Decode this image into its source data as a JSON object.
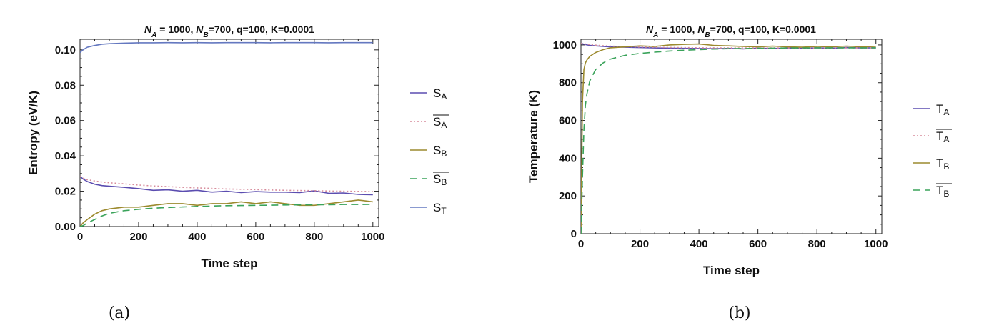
{
  "chart_data": [
    {
      "type": "line",
      "panel_caption": "(a)",
      "title": "N_A = 1000, N_B=700, q=100, K=0.0001",
      "title_parts": [
        "N",
        "A",
        " = 1000, ",
        "N",
        "B",
        "=700, q=100, K=0.0001"
      ],
      "xlabel": "Time step",
      "ylabel": "Entropy (eV/K)",
      "xlim": [
        0,
        1020
      ],
      "ylim": [
        0,
        0.106
      ],
      "xticks": [
        0,
        200,
        400,
        600,
        800,
        1000
      ],
      "yticks": [
        "0.00",
        "0.02",
        "0.04",
        "0.06",
        "0.08",
        "0.10"
      ],
      "ytick_values": [
        0,
        0.02,
        0.04,
        0.06,
        0.08,
        0.1
      ],
      "x": [
        0,
        10,
        25,
        50,
        75,
        100,
        150,
        200,
        250,
        300,
        350,
        400,
        450,
        500,
        550,
        600,
        650,
        700,
        750,
        800,
        850,
        900,
        950,
        1000
      ],
      "series": [
        {
          "name": "S_A",
          "label_main": "S",
          "label_sub": "A",
          "overline": false,
          "color": "#5b4db0",
          "dash": "",
          "values": [
            0.0285,
            0.027,
            0.0255,
            0.024,
            0.0232,
            0.0228,
            0.0222,
            0.0215,
            0.0205,
            0.0208,
            0.02,
            0.0205,
            0.0195,
            0.02,
            0.0192,
            0.0198,
            0.0195,
            0.0195,
            0.0192,
            0.0202,
            0.0188,
            0.019,
            0.0182,
            0.018
          ]
        },
        {
          "name": "S_A (mean)",
          "label_main": "S",
          "label_sub": "A",
          "overline": true,
          "color": "#d78c9c",
          "dash": "2,3",
          "values": [
            0.0285,
            0.0275,
            0.0265,
            0.0258,
            0.0252,
            0.0248,
            0.0242,
            0.0235,
            0.023,
            0.0226,
            0.0222,
            0.0219,
            0.0216,
            0.0213,
            0.0211,
            0.0209,
            0.0207,
            0.0205,
            0.0204,
            0.0203,
            0.0201,
            0.02,
            0.0199,
            0.0198
          ]
        },
        {
          "name": "S_B",
          "label_main": "S",
          "label_sub": "B",
          "overline": false,
          "color": "#9c8a2e",
          "dash": "",
          "values": [
            0.0,
            0.002,
            0.004,
            0.007,
            0.009,
            0.01,
            0.011,
            0.011,
            0.012,
            0.013,
            0.013,
            0.012,
            0.013,
            0.013,
            0.014,
            0.013,
            0.014,
            0.013,
            0.012,
            0.012,
            0.013,
            0.014,
            0.015,
            0.014
          ]
        },
        {
          "name": "S_B (mean)",
          "label_main": "S",
          "label_sub": "B",
          "overline": true,
          "color": "#3aa35a",
          "dash": "10,6",
          "values": [
            0.0,
            0.0005,
            0.002,
            0.004,
            0.006,
            0.0075,
            0.009,
            0.0098,
            0.0104,
            0.0108,
            0.0111,
            0.0114,
            0.0116,
            0.0118,
            0.0119,
            0.012,
            0.0121,
            0.0122,
            0.0123,
            0.0124,
            0.0124,
            0.0125,
            0.0125,
            0.0126
          ]
        },
        {
          "name": "S_T",
          "label_main": "S",
          "label_sub": "T",
          "overline": false,
          "color": "#6478c0",
          "dash": "",
          "values": [
            0.0985,
            0.1,
            0.1015,
            0.1025,
            0.1032,
            0.1035,
            0.1038,
            0.104,
            0.104,
            0.1041,
            0.104,
            0.1041,
            0.104,
            0.1041,
            0.1041,
            0.1041,
            0.104,
            0.1041,
            0.1041,
            0.1041,
            0.104,
            0.1041,
            0.1041,
            0.1041
          ]
        }
      ],
      "legend": "right"
    },
    {
      "type": "line",
      "panel_caption": "(b)",
      "title": "N_A = 1000, N_B=700, q=100, K=0.0001",
      "title_parts": [
        "N",
        "A",
        " = 1000, ",
        "N",
        "B",
        "=700, q=100, K=0.0001"
      ],
      "xlabel": "Time step",
      "ylabel": "Temperature (K)",
      "xlim": [
        0,
        1020
      ],
      "ylim": [
        0,
        1030
      ],
      "xticks": [
        0,
        200,
        400,
        600,
        800,
        1000
      ],
      "yticks": [
        "0",
        "200",
        "400",
        "600",
        "800",
        "1000"
      ],
      "ytick_values": [
        0,
        200,
        400,
        600,
        800,
        1000
      ],
      "x": [
        0,
        5,
        10,
        15,
        20,
        30,
        50,
        75,
        100,
        150,
        200,
        250,
        300,
        350,
        400,
        450,
        500,
        550,
        600,
        650,
        700,
        750,
        800,
        850,
        900,
        950,
        1000
      ],
      "series": [
        {
          "name": "T_A",
          "label_main": "T",
          "label_sub": "A",
          "overline": false,
          "color": "#5b4db0",
          "dash": "",
          "values": [
            1008,
            1006,
            1004,
            1002,
            1000,
            998,
            995,
            992,
            990,
            988,
            986,
            984,
            983,
            982,
            981,
            980,
            982,
            979,
            983,
            981,
            984,
            982,
            985,
            983,
            986,
            984,
            985
          ]
        },
        {
          "name": "T_A (mean)",
          "label_main": "T",
          "label_sub": "A",
          "overline": true,
          "color": "#d78c9c",
          "dash": "2,3",
          "values": [
            1008,
            1007,
            1006,
            1005,
            1004,
            1002,
            999,
            996,
            994,
            991,
            989,
            988,
            987,
            986,
            985,
            985,
            984,
            984,
            984,
            984,
            984,
            984,
            984,
            984,
            984,
            984,
            984
          ]
        },
        {
          "name": "T_B",
          "label_main": "T",
          "label_sub": "B",
          "overline": false,
          "color": "#9c8a2e",
          "dash": "",
          "values": [
            0,
            700,
            870,
            905,
            920,
            940,
            960,
            975,
            985,
            990,
            995,
            992,
            1000,
            1003,
            1005,
            998,
            995,
            992,
            990,
            994,
            990,
            988,
            992,
            990,
            994,
            990,
            992
          ]
        },
        {
          "name": "T_B (mean)",
          "label_main": "T",
          "label_sub": "B",
          "overline": true,
          "color": "#3aa35a",
          "dash": "10,6",
          "values": [
            0,
            300,
            550,
            680,
            740,
            810,
            870,
            905,
            925,
            945,
            955,
            962,
            968,
            972,
            975,
            978,
            980,
            981,
            982,
            983,
            984,
            984,
            985,
            985,
            985,
            985,
            985
          ]
        }
      ],
      "legend": "right"
    }
  ]
}
